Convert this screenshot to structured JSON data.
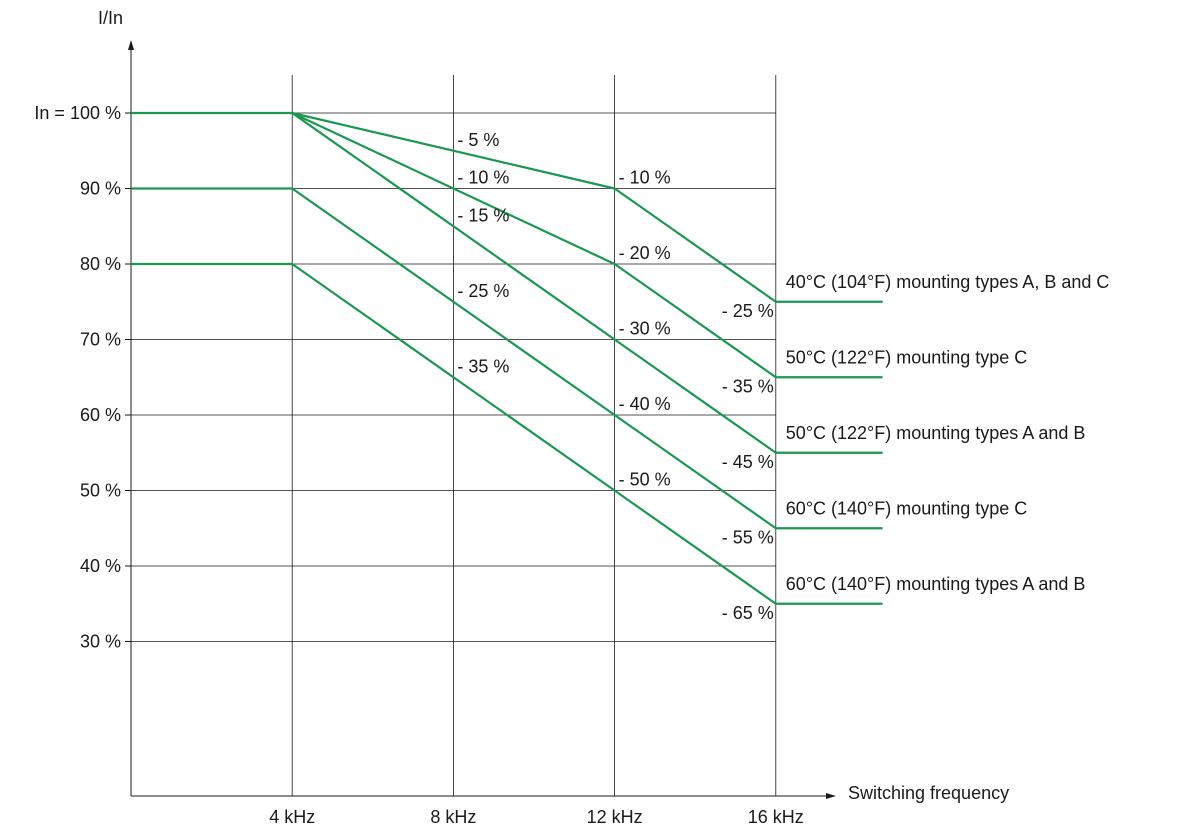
{
  "chart_data": {
    "type": "line",
    "title": "",
    "xlabel": "Switching frequency",
    "ylabel": "I/In",
    "x_ticks": [
      {
        "value": 4,
        "label": "4 kHz"
      },
      {
        "value": 8,
        "label": "8 kHz"
      },
      {
        "value": 12,
        "label": "12 kHz"
      },
      {
        "value": 16,
        "label": "16 kHz"
      }
    ],
    "y_ticks": [
      {
        "value": 100,
        "label": "In = 100 %"
      },
      {
        "value": 90,
        "label": "90 %"
      },
      {
        "value": 80,
        "label": "80 %"
      },
      {
        "value": 70,
        "label": "70 %"
      },
      {
        "value": 60,
        "label": "60 %"
      },
      {
        "value": 50,
        "label": "50 %"
      },
      {
        "value": 40,
        "label": "40 %"
      },
      {
        "value": 30,
        "label": "30 %"
      }
    ],
    "xlim": [
      0,
      16
    ],
    "ylim": [
      13,
      100
    ],
    "grid": true,
    "line_color": "#1a9850",
    "series": [
      {
        "name": "40°C (104°F) mounting types A, B and C",
        "points": [
          [
            0,
            100
          ],
          [
            4,
            100
          ],
          [
            12,
            90
          ],
          [
            16,
            75
          ],
          [
            18.65,
            75
          ]
        ],
        "labels": [
          {
            "text": "- 5 %",
            "x": 8,
            "y": 95
          },
          {
            "text": "- 10 %",
            "x": 12,
            "y": 90
          },
          {
            "text": "- 25 %",
            "x": 16,
            "y": 75
          }
        ]
      },
      {
        "name": "50°C (122°F) mounting type C",
        "points": [
          [
            4,
            100
          ],
          [
            12,
            80
          ],
          [
            16,
            65
          ],
          [
            18.65,
            65
          ]
        ],
        "labels": [
          {
            "text": "- 10 %",
            "x": 8,
            "y": 90
          },
          {
            "text": "- 20 %",
            "x": 12,
            "y": 80
          },
          {
            "text": "- 35 %",
            "x": 16,
            "y": 65
          }
        ]
      },
      {
        "name": "50°C (122°F) mounting types A and B",
        "points": [
          [
            4,
            100
          ],
          [
            12,
            70
          ],
          [
            16,
            55
          ],
          [
            18.65,
            55
          ]
        ],
        "labels": [
          {
            "text": "- 15 %",
            "x": 8,
            "y": 85
          },
          {
            "text": "- 30 %",
            "x": 12,
            "y": 70
          },
          {
            "text": "- 45 %",
            "x": 16,
            "y": 55
          }
        ]
      },
      {
        "name": "60°C (140°F) mounting type C",
        "points": [
          [
            0,
            90
          ],
          [
            4,
            90
          ],
          [
            12,
            60
          ],
          [
            16,
            45
          ],
          [
            18.65,
            45
          ]
        ],
        "labels": [
          {
            "text": "- 25 %",
            "x": 8,
            "y": 75
          },
          {
            "text": "- 40 %",
            "x": 12,
            "y": 60
          },
          {
            "text": "- 55 %",
            "x": 16,
            "y": 45
          }
        ]
      },
      {
        "name": "60°C (140°F) mounting types A and B",
        "points": [
          [
            0,
            80
          ],
          [
            4,
            80
          ],
          [
            12,
            50
          ],
          [
            16,
            35
          ],
          [
            18.65,
            35
          ]
        ],
        "labels": [
          {
            "text": "- 35 %",
            "x": 8,
            "y": 65
          },
          {
            "text": "- 50 %",
            "x": 12,
            "y": 50
          },
          {
            "text": "- 65 %",
            "x": 16,
            "y": 35
          }
        ]
      }
    ]
  }
}
